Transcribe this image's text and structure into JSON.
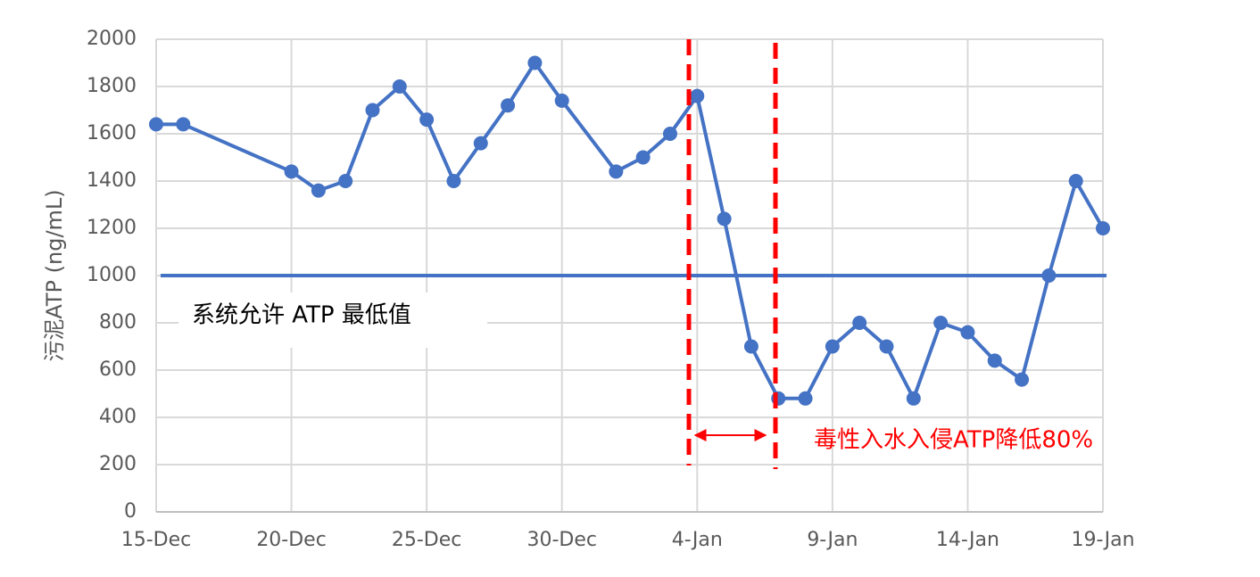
{
  "chart_data": {
    "type": "line",
    "y_label": "污泥ATP (ng/mL)",
    "x": [
      "15-Dec",
      "16-Dec",
      "20-Dec",
      "21-Dec",
      "22-Dec",
      "23-Dec",
      "24-Dec",
      "25-Dec",
      "26-Dec",
      "27-Dec",
      "28-Dec",
      "29-Dec",
      "30-Dec",
      "1-Jan",
      "2-Jan",
      "3-Jan",
      "4-Jan",
      "5-Jan",
      "6-Jan",
      "7-Jan",
      "8-Jan",
      "9-Jan",
      "10-Jan",
      "11-Jan",
      "12-Jan",
      "13-Jan",
      "14-Jan",
      "15-Jan",
      "16-Jan",
      "17-Jan",
      "18-Jan",
      "19-Jan"
    ],
    "values": [
      1640,
      1640,
      1440,
      1360,
      1400,
      1700,
      1800,
      1660,
      1400,
      1560,
      1720,
      1900,
      1740,
      1440,
      1500,
      1600,
      1760,
      1240,
      700,
      480,
      480,
      700,
      800,
      700,
      480,
      800,
      760,
      640,
      560,
      1000,
      1400,
      1200
    ],
    "color": "#4472c4",
    "xlim": [
      "15-Dec",
      "19-Jan"
    ],
    "xticks": [
      "15-Dec",
      "20-Dec",
      "25-Dec",
      "30-Dec",
      "4-Jan",
      "9-Jan",
      "14-Jan",
      "19-Jan"
    ],
    "ylim": [
      0,
      2000
    ],
    "yticks": [
      0,
      200,
      400,
      600,
      800,
      1000,
      1200,
      1400,
      1600,
      1800,
      2000
    ],
    "grid": true,
    "threshold": 1000,
    "threshold_label": "系统允许 ATP 最低值",
    "event_label": "毒性入水入侵ATP降低80%"
  }
}
